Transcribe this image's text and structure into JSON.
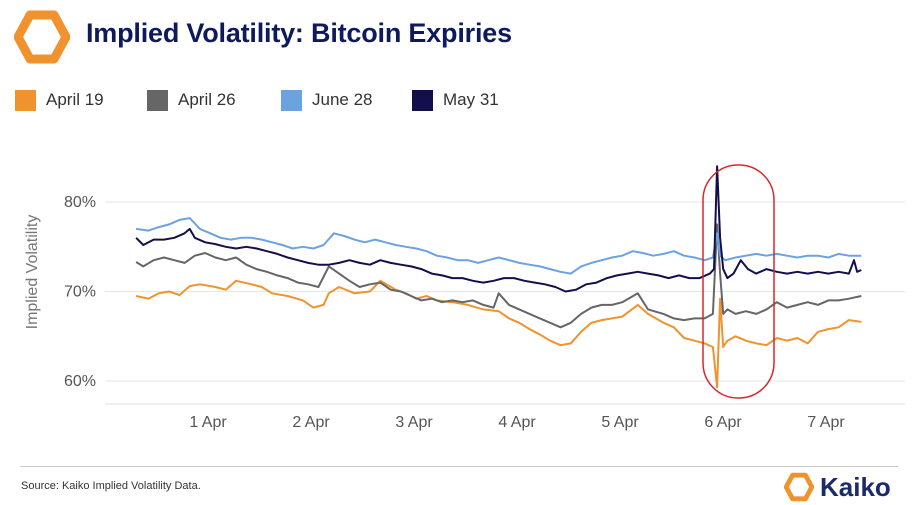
{
  "title": "Implied Volatility: Bitcoin Expiries",
  "legend": [
    {
      "label": "April 19",
      "color": "#f0922e"
    },
    {
      "label": "April 26",
      "color": "#666666"
    },
    {
      "label": "June 28",
      "color": "#6aa3e0"
    },
    {
      "label": "May 31",
      "color": "#12104a"
    }
  ],
  "source": "Source: Kaiko Implied Volatility Data.",
  "brand": "Kaiko",
  "highlight_color": "#d9262c",
  "chart_data": {
    "type": "line",
    "title": "Implied Volatility: Bitcoin Expiries",
    "ylabel": "Implied Volatility",
    "xlabel": "",
    "x_ticks": [
      "1 Apr",
      "2 Apr",
      "3 Apr",
      "4 Apr",
      "5 Apr",
      "6 Apr",
      "7 Apr"
    ],
    "x_range_days": [
      0.38,
      7.42
    ],
    "y_ticks": [
      "60%",
      "70%",
      "80%"
    ],
    "ylim": [
      58,
      85
    ],
    "grid": "horizontal",
    "legend_position": "top",
    "annotation": "red oval highlighting spike on 6 Apr",
    "series": [
      {
        "name": "April 19",
        "color": "#f0922e",
        "points": [
          [
            0.38,
            69.5
          ],
          [
            0.5,
            69.2
          ],
          [
            0.6,
            69.8
          ],
          [
            0.7,
            70.0
          ],
          [
            0.8,
            69.6
          ],
          [
            0.9,
            70.6
          ],
          [
            1.0,
            70.8
          ],
          [
            1.15,
            70.5
          ],
          [
            1.25,
            70.2
          ],
          [
            1.35,
            71.2
          ],
          [
            1.5,
            70.8
          ],
          [
            1.6,
            70.5
          ],
          [
            1.7,
            69.8
          ],
          [
            1.85,
            69.5
          ],
          [
            2.0,
            69.0
          ],
          [
            2.1,
            68.2
          ],
          [
            2.2,
            68.5
          ],
          [
            2.25,
            69.8
          ],
          [
            2.35,
            70.5
          ],
          [
            2.5,
            69.8
          ],
          [
            2.65,
            70.0
          ],
          [
            2.75,
            71.2
          ],
          [
            2.9,
            70.2
          ],
          [
            3.0,
            69.8
          ],
          [
            3.1,
            69.2
          ],
          [
            3.2,
            69.5
          ],
          [
            3.3,
            69.0
          ],
          [
            3.45,
            68.8
          ],
          [
            3.6,
            68.5
          ],
          [
            3.75,
            68.0
          ],
          [
            3.9,
            67.8
          ],
          [
            4.0,
            67.0
          ],
          [
            4.1,
            66.5
          ],
          [
            4.2,
            65.8
          ],
          [
            4.3,
            65.2
          ],
          [
            4.4,
            64.5
          ],
          [
            4.5,
            64.0
          ],
          [
            4.6,
            64.2
          ],
          [
            4.7,
            65.5
          ],
          [
            4.8,
            66.5
          ],
          [
            4.9,
            66.8
          ],
          [
            5.0,
            67.0
          ],
          [
            5.1,
            67.2
          ],
          [
            5.25,
            68.5
          ],
          [
            5.35,
            67.5
          ],
          [
            5.5,
            66.5
          ],
          [
            5.6,
            66.0
          ],
          [
            5.7,
            64.8
          ],
          [
            5.8,
            64.5
          ],
          [
            5.9,
            64.2
          ],
          [
            5.98,
            63.8
          ],
          [
            6.02,
            59.3
          ],
          [
            6.05,
            69.2
          ],
          [
            6.08,
            63.8
          ],
          [
            6.12,
            64.5
          ],
          [
            6.2,
            65.0
          ],
          [
            6.3,
            64.5
          ],
          [
            6.4,
            64.2
          ],
          [
            6.5,
            64.0
          ],
          [
            6.6,
            64.8
          ],
          [
            6.7,
            64.5
          ],
          [
            6.8,
            64.8
          ],
          [
            6.9,
            64.2
          ],
          [
            7.0,
            65.5
          ],
          [
            7.1,
            65.8
          ],
          [
            7.2,
            66.0
          ],
          [
            7.3,
            66.8
          ],
          [
            7.42,
            66.6
          ]
        ]
      },
      {
        "name": "April 26",
        "color": "#666666",
        "points": [
          [
            0.38,
            73.3
          ],
          [
            0.45,
            72.8
          ],
          [
            0.55,
            73.5
          ],
          [
            0.65,
            73.8
          ],
          [
            0.75,
            73.5
          ],
          [
            0.85,
            73.2
          ],
          [
            0.95,
            74.0
          ],
          [
            1.05,
            74.3
          ],
          [
            1.15,
            73.8
          ],
          [
            1.25,
            73.5
          ],
          [
            1.35,
            73.8
          ],
          [
            1.45,
            73.0
          ],
          [
            1.55,
            72.5
          ],
          [
            1.65,
            72.2
          ],
          [
            1.75,
            71.8
          ],
          [
            1.85,
            71.5
          ],
          [
            1.95,
            71.0
          ],
          [
            2.05,
            70.8
          ],
          [
            2.15,
            70.5
          ],
          [
            2.25,
            72.8
          ],
          [
            2.35,
            72.0
          ],
          [
            2.45,
            71.2
          ],
          [
            2.55,
            70.5
          ],
          [
            2.65,
            70.8
          ],
          [
            2.75,
            71.0
          ],
          [
            2.85,
            70.2
          ],
          [
            2.95,
            70.0
          ],
          [
            3.05,
            69.5
          ],
          [
            3.15,
            69.0
          ],
          [
            3.25,
            69.2
          ],
          [
            3.35,
            68.8
          ],
          [
            3.45,
            69.0
          ],
          [
            3.55,
            68.8
          ],
          [
            3.65,
            69.0
          ],
          [
            3.75,
            68.5
          ],
          [
            3.85,
            68.2
          ],
          [
            3.9,
            69.8
          ],
          [
            4.0,
            68.5
          ],
          [
            4.1,
            68.0
          ],
          [
            4.2,
            67.5
          ],
          [
            4.3,
            67.0
          ],
          [
            4.4,
            66.5
          ],
          [
            4.5,
            66.0
          ],
          [
            4.6,
            66.5
          ],
          [
            4.7,
            67.5
          ],
          [
            4.8,
            68.2
          ],
          [
            4.9,
            68.5
          ],
          [
            5.0,
            68.5
          ],
          [
            5.1,
            68.8
          ],
          [
            5.25,
            69.8
          ],
          [
            5.35,
            68.0
          ],
          [
            5.5,
            67.5
          ],
          [
            5.6,
            67.0
          ],
          [
            5.7,
            66.8
          ],
          [
            5.8,
            67.0
          ],
          [
            5.9,
            67.0
          ],
          [
            5.98,
            67.5
          ],
          [
            6.02,
            77.5
          ],
          [
            6.05,
            72.0
          ],
          [
            6.08,
            67.5
          ],
          [
            6.12,
            68.0
          ],
          [
            6.2,
            67.5
          ],
          [
            6.3,
            67.8
          ],
          [
            6.4,
            67.5
          ],
          [
            6.5,
            68.0
          ],
          [
            6.6,
            68.8
          ],
          [
            6.7,
            68.2
          ],
          [
            6.8,
            68.5
          ],
          [
            6.9,
            68.8
          ],
          [
            7.0,
            68.5
          ],
          [
            7.1,
            69.0
          ],
          [
            7.2,
            69.0
          ],
          [
            7.3,
            69.2
          ],
          [
            7.42,
            69.5
          ]
        ]
      },
      {
        "name": "June 28",
        "color": "#6aa3e0",
        "points": [
          [
            0.38,
            77.0
          ],
          [
            0.5,
            76.8
          ],
          [
            0.6,
            77.2
          ],
          [
            0.7,
            77.5
          ],
          [
            0.8,
            78.0
          ],
          [
            0.9,
            78.2
          ],
          [
            1.0,
            77.0
          ],
          [
            1.1,
            76.5
          ],
          [
            1.2,
            76.0
          ],
          [
            1.3,
            75.8
          ],
          [
            1.4,
            76.0
          ],
          [
            1.5,
            76.0
          ],
          [
            1.6,
            75.8
          ],
          [
            1.7,
            75.5
          ],
          [
            1.8,
            75.2
          ],
          [
            1.9,
            74.8
          ],
          [
            2.0,
            75.0
          ],
          [
            2.1,
            74.8
          ],
          [
            2.2,
            75.2
          ],
          [
            2.3,
            76.5
          ],
          [
            2.4,
            76.2
          ],
          [
            2.5,
            75.8
          ],
          [
            2.6,
            75.5
          ],
          [
            2.7,
            75.8
          ],
          [
            2.8,
            75.5
          ],
          [
            2.9,
            75.2
          ],
          [
            3.0,
            75.0
          ],
          [
            3.1,
            74.8
          ],
          [
            3.2,
            74.5
          ],
          [
            3.3,
            74.0
          ],
          [
            3.4,
            73.8
          ],
          [
            3.5,
            73.5
          ],
          [
            3.6,
            73.5
          ],
          [
            3.7,
            73.2
          ],
          [
            3.8,
            73.5
          ],
          [
            3.9,
            73.8
          ],
          [
            4.0,
            73.5
          ],
          [
            4.1,
            73.2
          ],
          [
            4.2,
            73.0
          ],
          [
            4.3,
            72.8
          ],
          [
            4.4,
            72.5
          ],
          [
            4.5,
            72.2
          ],
          [
            4.6,
            72.0
          ],
          [
            4.7,
            72.8
          ],
          [
            4.8,
            73.2
          ],
          [
            4.9,
            73.5
          ],
          [
            5.0,
            73.8
          ],
          [
            5.1,
            74.0
          ],
          [
            5.2,
            74.5
          ],
          [
            5.3,
            74.3
          ],
          [
            5.4,
            74.0
          ],
          [
            5.5,
            74.2
          ],
          [
            5.6,
            74.5
          ],
          [
            5.7,
            74.0
          ],
          [
            5.8,
            73.8
          ],
          [
            5.9,
            73.5
          ],
          [
            5.98,
            73.8
          ],
          [
            6.02,
            76.5
          ],
          [
            6.05,
            74.0
          ],
          [
            6.1,
            73.5
          ],
          [
            6.2,
            73.8
          ],
          [
            6.3,
            74.0
          ],
          [
            6.4,
            74.2
          ],
          [
            6.5,
            74.0
          ],
          [
            6.6,
            74.2
          ],
          [
            6.7,
            74.0
          ],
          [
            6.8,
            73.8
          ],
          [
            6.9,
            74.0
          ],
          [
            7.0,
            74.0
          ],
          [
            7.1,
            73.8
          ],
          [
            7.2,
            74.2
          ],
          [
            7.3,
            74.0
          ],
          [
            7.42,
            74.0
          ]
        ]
      },
      {
        "name": "May 31",
        "color": "#12104a",
        "points": [
          [
            0.38,
            76.0
          ],
          [
            0.45,
            75.2
          ],
          [
            0.55,
            75.8
          ],
          [
            0.65,
            75.8
          ],
          [
            0.75,
            76.0
          ],
          [
            0.85,
            76.5
          ],
          [
            0.9,
            77.0
          ],
          [
            0.95,
            76.0
          ],
          [
            1.05,
            75.5
          ],
          [
            1.15,
            75.3
          ],
          [
            1.25,
            75.0
          ],
          [
            1.35,
            74.8
          ],
          [
            1.45,
            75.0
          ],
          [
            1.55,
            74.8
          ],
          [
            1.65,
            74.5
          ],
          [
            1.75,
            74.2
          ],
          [
            1.85,
            73.8
          ],
          [
            1.95,
            73.5
          ],
          [
            2.05,
            73.2
          ],
          [
            2.15,
            73.0
          ],
          [
            2.25,
            73.0
          ],
          [
            2.35,
            73.2
          ],
          [
            2.45,
            73.5
          ],
          [
            2.55,
            73.2
          ],
          [
            2.65,
            73.0
          ],
          [
            2.75,
            73.5
          ],
          [
            2.85,
            73.2
          ],
          [
            2.95,
            73.0
          ],
          [
            3.05,
            72.8
          ],
          [
            3.15,
            72.5
          ],
          [
            3.25,
            72.0
          ],
          [
            3.35,
            71.8
          ],
          [
            3.45,
            71.5
          ],
          [
            3.55,
            71.5
          ],
          [
            3.65,
            71.2
          ],
          [
            3.75,
            71.0
          ],
          [
            3.85,
            71.2
          ],
          [
            3.95,
            71.5
          ],
          [
            4.05,
            71.5
          ],
          [
            4.15,
            71.2
          ],
          [
            4.25,
            71.0
          ],
          [
            4.35,
            70.8
          ],
          [
            4.45,
            70.5
          ],
          [
            4.55,
            70.0
          ],
          [
            4.65,
            70.2
          ],
          [
            4.75,
            70.8
          ],
          [
            4.85,
            71.0
          ],
          [
            4.95,
            71.5
          ],
          [
            5.05,
            71.8
          ],
          [
            5.15,
            72.0
          ],
          [
            5.25,
            72.2
          ],
          [
            5.35,
            72.0
          ],
          [
            5.45,
            71.8
          ],
          [
            5.55,
            71.5
          ],
          [
            5.65,
            71.8
          ],
          [
            5.75,
            71.5
          ],
          [
            5.85,
            71.5
          ],
          [
            5.95,
            72.0
          ],
          [
            5.99,
            72.5
          ],
          [
            6.02,
            84.0
          ],
          [
            6.05,
            76.0
          ],
          [
            6.08,
            72.5
          ],
          [
            6.12,
            71.5
          ],
          [
            6.18,
            72.0
          ],
          [
            6.25,
            73.5
          ],
          [
            6.32,
            72.5
          ],
          [
            6.4,
            72.0
          ],
          [
            6.5,
            72.5
          ],
          [
            6.6,
            72.2
          ],
          [
            6.7,
            72.0
          ],
          [
            6.8,
            72.2
          ],
          [
            6.9,
            72.0
          ],
          [
            7.0,
            72.2
          ],
          [
            7.1,
            72.0
          ],
          [
            7.2,
            72.2
          ],
          [
            7.3,
            72.0
          ],
          [
            7.35,
            73.5
          ],
          [
            7.38,
            72.2
          ],
          [
            7.42,
            72.4
          ]
        ]
      }
    ]
  }
}
